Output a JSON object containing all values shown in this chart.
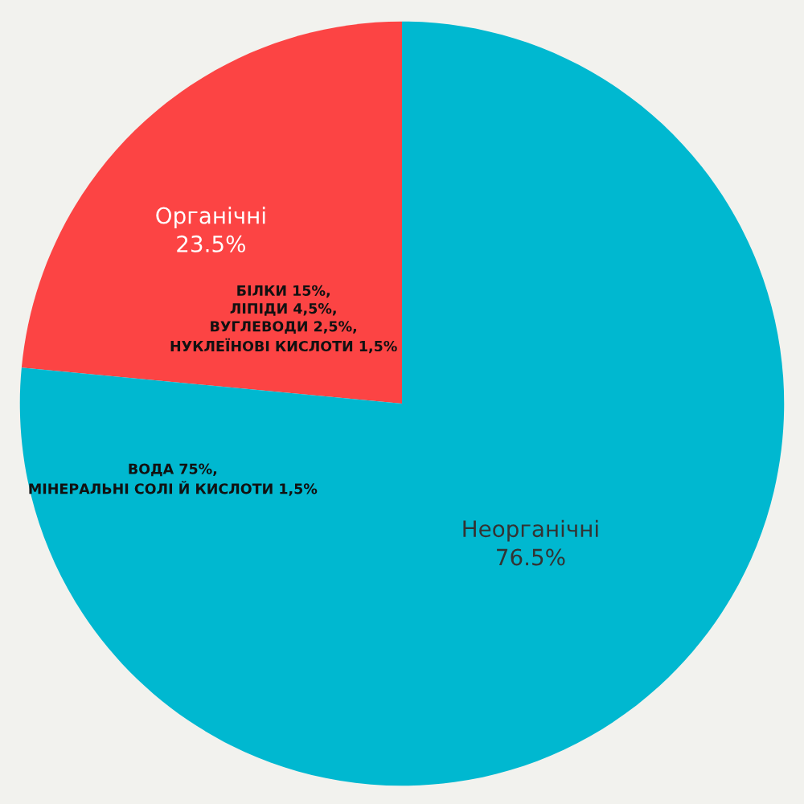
{
  "chart_data": {
    "type": "pie",
    "categories": [
      "Органічні",
      "Неорганічні"
    ],
    "values": [
      23.5,
      76.5
    ],
    "value_labels": [
      "23.5%",
      "76.5%"
    ],
    "colors": [
      "#fc4444",
      "#00b8d0"
    ],
    "annotations": [
      "БІЛКИ 15%,\nЛІПІДИ 4,5%,\nВУГЛЕВОДИ 2,5%,\nНУКЛЕЇНОВІ КИСЛОТИ 1,5%",
      "ВОДА 75%,\nМІНЕРАЛЬНІ СОЛІ Й КИСЛОТИ 1,5%"
    ],
    "legend": false
  }
}
